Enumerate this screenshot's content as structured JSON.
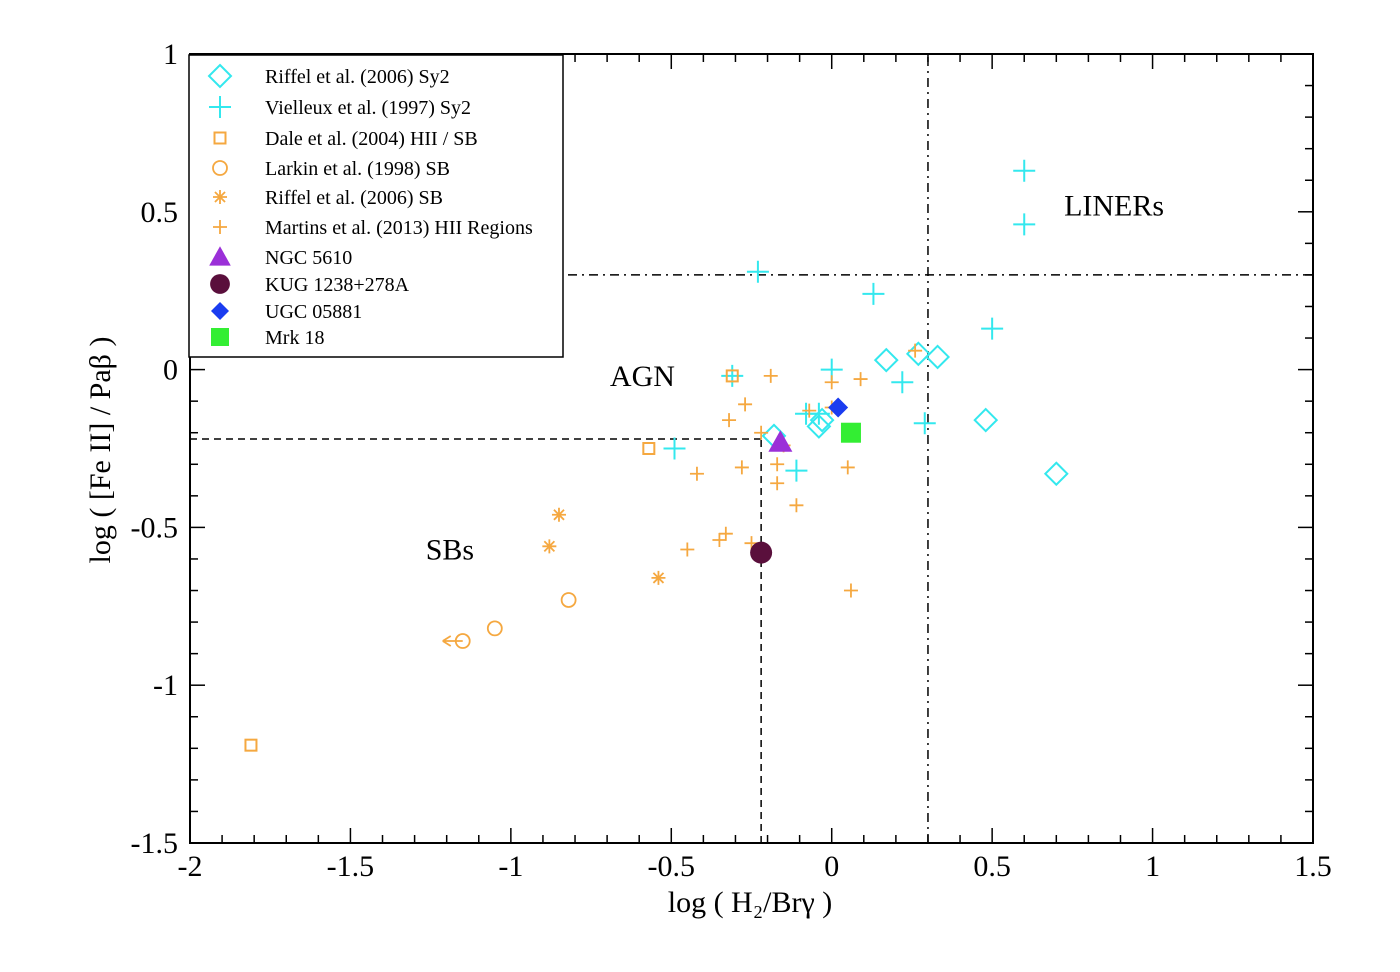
{
  "chart_data": {
    "type": "scatter",
    "xlabel": "log ( H₂/Brγ )",
    "ylabel": "log ( [Fe II] / Paβ )",
    "xlim": [
      -2,
      1.5
    ],
    "ylim": [
      -1.5,
      1
    ],
    "x_ticks": [
      -2,
      -1.5,
      -1,
      -0.5,
      0,
      0.5,
      1,
      1.5
    ],
    "x_tick_labels": [
      "-2",
      "-1.5",
      "-1",
      "-0.5",
      "0",
      "0.5",
      "1",
      "1.5"
    ],
    "y_ticks": [
      -1.5,
      -1,
      -0.5,
      0,
      0.5,
      1
    ],
    "y_tick_labels": [
      "-1.5",
      "-1",
      "-0.5",
      "0",
      "0.5",
      "1"
    ],
    "grid": false,
    "legend_position": "top-left",
    "colors": {
      "cyan": "#33e8ee",
      "orange": "#f5a840",
      "purple": "#9b30d8",
      "maroon": "#5a0f3c",
      "blue": "#1a3cf0",
      "green": "#33ee33"
    },
    "series": [
      {
        "name": "Riffel et al. (2006) Sy2",
        "marker": "diamond-open",
        "color": "#33e8ee",
        "points": [
          [
            -0.18,
            -0.21
          ],
          [
            -0.04,
            -0.18
          ],
          [
            -0.03,
            -0.16
          ],
          [
            0.17,
            0.03
          ],
          [
            0.27,
            0.05
          ],
          [
            0.33,
            0.04
          ],
          [
            0.48,
            -0.16
          ],
          [
            0.7,
            -0.33
          ]
        ]
      },
      {
        "name": "Vielleux et al. (1997) Sy2",
        "marker": "plus",
        "color": "#33e8ee",
        "points": [
          [
            -0.49,
            -0.25
          ],
          [
            -0.23,
            0.31
          ],
          [
            -0.31,
            -0.02
          ],
          [
            0.0,
            0.0
          ],
          [
            -0.08,
            -0.14
          ],
          [
            -0.04,
            -0.14
          ],
          [
            -0.11,
            -0.32
          ],
          [
            0.13,
            0.24
          ],
          [
            0.22,
            -0.04
          ],
          [
            0.29,
            -0.17
          ],
          [
            0.5,
            0.13
          ],
          [
            0.6,
            0.46
          ],
          [
            0.6,
            0.63
          ]
        ]
      },
      {
        "name": "Dale et al. (2004) HII / SB",
        "marker": "square-open",
        "color": "#f5a840",
        "points": [
          [
            -1.81,
            -1.19
          ],
          [
            -0.57,
            -0.25
          ],
          [
            -0.31,
            -0.02
          ]
        ]
      },
      {
        "name": "Larkin et al. (1998) SB",
        "marker": "circle-open",
        "color": "#f5a840",
        "points": [
          [
            -1.15,
            -0.86
          ],
          [
            -1.05,
            -0.82
          ],
          [
            -0.82,
            -0.73
          ]
        ],
        "upper_limit_arrow_x": [
          [
            -1.15,
            -0.86
          ]
        ]
      },
      {
        "name": "Riffel et al. (2006) SB",
        "marker": "asterisk",
        "color": "#f5a840",
        "points": [
          [
            -0.85,
            -0.46
          ],
          [
            -0.88,
            -0.56
          ],
          [
            -0.54,
            -0.66
          ]
        ]
      },
      {
        "name": "Martins et al. (2013) HII Regions",
        "marker": "plus-small",
        "color": "#f5a840",
        "points": [
          [
            -0.45,
            -0.57
          ],
          [
            -0.42,
            -0.33
          ],
          [
            -0.35,
            -0.54
          ],
          [
            -0.33,
            -0.52
          ],
          [
            -0.32,
            -0.16
          ],
          [
            -0.28,
            -0.31
          ],
          [
            -0.27,
            -0.11
          ],
          [
            -0.25,
            -0.55
          ],
          [
            -0.22,
            -0.2
          ],
          [
            -0.19,
            -0.02
          ],
          [
            -0.17,
            -0.36
          ],
          [
            -0.17,
            -0.3
          ],
          [
            -0.15,
            -0.24
          ],
          [
            -0.11,
            -0.43
          ],
          [
            -0.07,
            -0.13
          ],
          [
            0.0,
            -0.12
          ],
          [
            0.0,
            -0.04
          ],
          [
            0.05,
            -0.31
          ],
          [
            0.06,
            -0.7
          ],
          [
            0.09,
            -0.03
          ],
          [
            0.26,
            0.06
          ]
        ]
      },
      {
        "name": "NGC 5610",
        "marker": "triangle-filled",
        "color": "#9b30d8",
        "points": [
          [
            -0.16,
            -0.23
          ]
        ]
      },
      {
        "name": "KUG 1238+278A",
        "marker": "circle-filled",
        "color": "#5a0f3c",
        "points": [
          [
            -0.22,
            -0.58
          ]
        ]
      },
      {
        "name": "UGC 05881",
        "marker": "diamond-filled",
        "color": "#1a3cf0",
        "points": [
          [
            0.02,
            -0.12
          ]
        ]
      },
      {
        "name": "Mrk 18",
        "marker": "square-filled",
        "color": "#33ee33",
        "points": [
          [
            0.06,
            -0.2
          ]
        ]
      }
    ],
    "reference_lines": [
      {
        "style": "dash-dot",
        "orientation": "vertical",
        "x": 0.3,
        "y_range": [
          -1.5,
          1
        ]
      },
      {
        "style": "dash-dot",
        "orientation": "horizontal",
        "y": 0.3,
        "x_range": [
          -2,
          1.5
        ]
      },
      {
        "style": "dashed",
        "orientation": "vertical",
        "x": -0.22,
        "y_range": [
          -1.5,
          -0.22
        ]
      },
      {
        "style": "dashed",
        "orientation": "horizontal",
        "y": -0.22,
        "x_range": [
          -2,
          -0.22
        ]
      }
    ],
    "annotations": [
      {
        "text": "LINERs",
        "x": 0.88,
        "y": 0.52
      },
      {
        "text": "AGN",
        "x": -0.59,
        "y": -0.02
      },
      {
        "text": "SBs",
        "x": -1.19,
        "y": -0.57
      }
    ]
  }
}
